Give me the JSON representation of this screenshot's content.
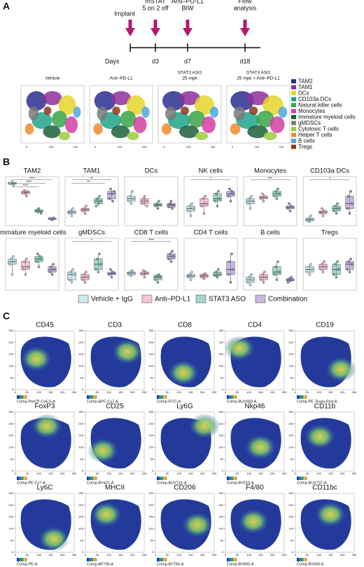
{
  "panel_a": {
    "label": "A",
    "timeline": {
      "events": [
        {
          "lines": [
            "Implant"
          ]
        },
        {
          "lines": [
            "mSTAT",
            "5 on 2 off"
          ]
        },
        {
          "lines": [
            "Anti–PD-L1",
            "BIW"
          ]
        },
        {
          "lines": [
            "Flow",
            "analysis"
          ]
        }
      ],
      "axis_label": "Days",
      "days": [
        "d3",
        "d7",
        "d18"
      ]
    },
    "tsne_panels": [
      {
        "lines": [
          "Vehicle"
        ]
      },
      {
        "lines": [
          "Anti–PD-L1"
        ]
      },
      {
        "lines": [
          "STAT3 ASO",
          "25 mpk"
        ]
      },
      {
        "lines": [
          "STAT3 ASO",
          "25 mpk + Anti–PD-L1"
        ]
      }
    ],
    "tsne_ticks": [
      0,
      100,
      200
    ],
    "legend": [
      {
        "name": "TAM2",
        "color": "#2b2f8f"
      },
      {
        "name": "TAM1",
        "color": "#8e2f9c"
      },
      {
        "name": "DCs",
        "color": "#e5d52a"
      },
      {
        "name": "CD103a DCs",
        "color": "#1fa38a"
      },
      {
        "name": "Natural killer cells",
        "color": "#3aa545"
      },
      {
        "name": "Monocytes",
        "color": "#d43fa5"
      },
      {
        "name": "Immature myeloid cells",
        "color": "#1c5e3a"
      },
      {
        "name": "gMDSCs",
        "color": "#7a7a7a"
      },
      {
        "name": "Cytotoxic T cells",
        "color": "#9ccc3c"
      },
      {
        "name": "Helper T cells",
        "color": "#f08a2a"
      },
      {
        "name": "B cells",
        "color": "#4aa8e0"
      },
      {
        "name": "Tregs",
        "color": "#8b3a1a"
      }
    ]
  },
  "panel_b": {
    "label": "B",
    "groups": [
      {
        "name": "Vehicle + IgG",
        "color": "#a7dbe8"
      },
      {
        "name": "Anti–PD-L1",
        "color": "#ee9ac0"
      },
      {
        "name": "STAT3 ASO",
        "color": "#5fb3a3"
      },
      {
        "name": "Combination",
        "color": "#9b7fc4"
      }
    ],
    "chart_data": [
      {
        "type": "box",
        "title": "TAM2",
        "ylim": [
          0,
          100
        ],
        "annotations": [
          "****",
          "****",
          "****"
        ],
        "values": [
          [
            85,
            88,
            90,
            82,
            86
          ],
          [
            68,
            72,
            65,
            60,
            70
          ],
          [
            32,
            28,
            35,
            30,
            25
          ],
          [
            15,
            13,
            12,
            16,
            14
          ]
        ]
      },
      {
        "type": "box",
        "title": "TAM1",
        "ylim": [
          0,
          100
        ],
        "annotations": [
          "**",
          "**"
        ],
        "values": [
          [
            25,
            30,
            20,
            35,
            28
          ],
          [
            30,
            35,
            25,
            40,
            32
          ],
          [
            40,
            55,
            45,
            60,
            50
          ],
          [
            55,
            75,
            65,
            50,
            70
          ]
        ]
      },
      {
        "type": "box",
        "title": "DCs",
        "ylim": [
          0,
          100
        ],
        "annotations": [],
        "values": [
          [
            50,
            60,
            45,
            70,
            55
          ],
          [
            45,
            55,
            60,
            50,
            40
          ],
          [
            40,
            45,
            35,
            50,
            42
          ],
          [
            38,
            45,
            50,
            35,
            42
          ]
        ]
      },
      {
        "type": "box",
        "title": "NK cells",
        "ylim": [
          0,
          100
        ],
        "annotations": [
          "*"
        ],
        "values": [
          [
            30,
            40,
            20,
            45,
            35
          ],
          [
            40,
            55,
            25,
            60,
            45
          ],
          [
            50,
            65,
            40,
            70,
            55
          ],
          [
            60,
            75,
            50,
            70,
            65
          ]
        ]
      },
      {
        "type": "box",
        "title": "Monocytes",
        "ylim": [
          0,
          100
        ],
        "annotations": [
          "***"
        ],
        "values": [
          [
            45,
            55,
            35,
            60,
            50
          ],
          [
            55,
            65,
            50,
            60,
            58
          ],
          [
            60,
            70,
            55,
            75,
            65
          ],
          [
            35,
            45,
            30,
            40,
            38
          ]
        ]
      },
      {
        "type": "box",
        "title": "CD103a DCs",
        "ylim": [
          0,
          100
        ],
        "annotations": [
          "*"
        ],
        "values": [
          [
            10,
            15,
            8,
            20,
            12
          ],
          [
            25,
            35,
            20,
            30,
            28
          ],
          [
            30,
            40,
            25,
            45,
            35
          ],
          [
            35,
            60,
            25,
            70,
            45
          ]
        ]
      },
      {
        "type": "box",
        "title": "Immature myeloid cells",
        "ylim": [
          0,
          100
        ],
        "annotations": [],
        "values": [
          [
            50,
            60,
            30,
            65,
            55
          ],
          [
            40,
            55,
            30,
            60,
            45
          ],
          [
            55,
            70,
            45,
            65,
            60
          ],
          [
            35,
            45,
            30,
            50,
            40
          ]
        ]
      },
      {
        "type": "box",
        "title": "gMDSCs",
        "ylim": [
          0,
          100
        ],
        "annotations": [
          "*"
        ],
        "values": [
          [
            20,
            35,
            15,
            40,
            30
          ],
          [
            20,
            30,
            15,
            35,
            25
          ],
          [
            40,
            60,
            35,
            70,
            50
          ],
          [
            30,
            40,
            25,
            35,
            32
          ]
        ]
      },
      {
        "type": "box",
        "title": "CD8 T cells",
        "ylim": [
          0,
          100
        ],
        "annotations": [
          "****"
        ],
        "values": [
          [
            30,
            35,
            28,
            38,
            33
          ],
          [
            30,
            38,
            25,
            35,
            32
          ],
          [
            20,
            28,
            15,
            30,
            25
          ],
          [
            60,
            70,
            55,
            75,
            65
          ]
        ]
      },
      {
        "type": "box",
        "title": "CD4 T cells",
        "ylim": [
          0,
          100
        ],
        "annotations": [],
        "values": [
          [
            25,
            30,
            20,
            35,
            28
          ],
          [
            25,
            30,
            22,
            32,
            28
          ],
          [
            28,
            35,
            25,
            40,
            30
          ],
          [
            30,
            55,
            15,
            70,
            40
          ]
        ]
      },
      {
        "type": "box",
        "title": "B cells",
        "ylim": [
          0,
          100
        ],
        "annotations": [],
        "values": [
          [
            15,
            25,
            10,
            30,
            20
          ],
          [
            20,
            30,
            15,
            35,
            25
          ],
          [
            30,
            45,
            20,
            55,
            35
          ],
          [
            15,
            22,
            18,
            25,
            20
          ]
        ]
      },
      {
        "type": "box",
        "title": "Tregs",
        "ylim": [
          0,
          100
        ],
        "annotations": [],
        "values": [
          [
            35,
            45,
            30,
            50,
            40
          ],
          [
            40,
            50,
            35,
            55,
            45
          ],
          [
            30,
            50,
            25,
            55,
            40
          ],
          [
            40,
            55,
            35,
            60,
            50
          ]
        ]
      }
    ]
  },
  "panel_c": {
    "label": "C",
    "ticks": [
      0,
      50,
      100,
      150,
      200,
      250
    ],
    "maps": [
      {
        "title": "CD45",
        "channel": "Comp-PerCP-Cy5-5-A"
      },
      {
        "title": "CD3",
        "channel": "Comp-APC-Cy7-A"
      },
      {
        "title": "CD8",
        "channel": "Comp-FITC-A"
      },
      {
        "title": "CD4",
        "channel": "Comp-BUV659-A"
      },
      {
        "title": "CD19",
        "channel": "Comp-PE-Texas-Red-A"
      },
      {
        "title": "FoxP3",
        "channel": "Comp-PE-Cy7-A"
      },
      {
        "title": "CD25",
        "channel": "Comp-BV421-A"
      },
      {
        "title": "Ly6G",
        "channel": "Comp-BUV715-A"
      },
      {
        "title": "Nkp46",
        "channel": "Comp-BV510-A"
      },
      {
        "title": "CD11b",
        "channel": "Comp-BUV737-A"
      },
      {
        "title": "Ly6C",
        "channel": "Comp-PE-A"
      },
      {
        "title": "MHCII",
        "channel": "Comp-AF700-A"
      },
      {
        "title": "CD206",
        "channel": "Comp-BV786-A"
      },
      {
        "title": "F4/80",
        "channel": "Comp-BV605-A"
      },
      {
        "title": "CD11bc",
        "channel": "Comp-BV650-A"
      }
    ]
  }
}
